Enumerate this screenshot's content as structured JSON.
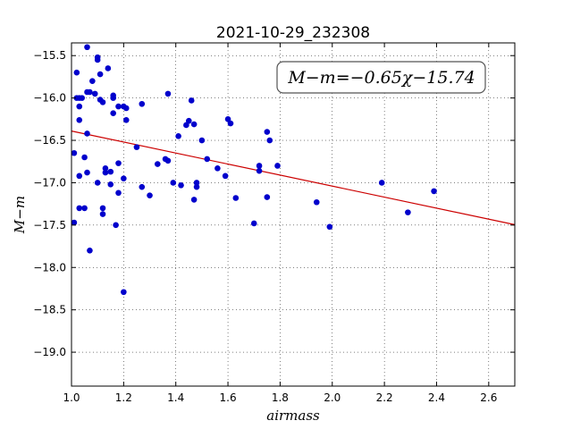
{
  "chart_data": {
    "type": "scatter",
    "title": "2021-10-29_232308",
    "xlabel": "airmass",
    "ylabel": "M−m",
    "annotation": "M−m=−0.65χ−15.74",
    "xlim": [
      1.0,
      2.7
    ],
    "ylim": [
      -19.4,
      -15.35
    ],
    "y_inverted": true,
    "grid": true,
    "marker_color": "#0000cc",
    "fit_color": "#cc0000",
    "xticks": [
      "1.0",
      "1.2",
      "1.4",
      "1.6",
      "1.8",
      "2.0",
      "2.2",
      "2.4",
      "2.6"
    ],
    "xtick_values": [
      1.0,
      1.2,
      1.4,
      1.6,
      1.8,
      2.0,
      2.2,
      2.4,
      2.6
    ],
    "yticks": [
      "−15.5",
      "−16.0",
      "−16.5",
      "−17.0",
      "−17.5",
      "−18.0",
      "−18.5",
      "−19.0"
    ],
    "ytick_values": [
      -15.5,
      -16.0,
      -16.5,
      -17.0,
      -17.5,
      -18.0,
      -18.5,
      -19.0
    ],
    "fit": {
      "slope": -0.65,
      "intercept": -15.74
    },
    "points": [
      [
        1.06,
        -15.4
      ],
      [
        1.1,
        -15.52
      ],
      [
        1.1,
        -15.55
      ],
      [
        1.14,
        -15.65
      ],
      [
        1.02,
        -15.7
      ],
      [
        1.11,
        -15.72
      ],
      [
        1.08,
        -15.8
      ],
      [
        1.04,
        -16.0
      ],
      [
        1.02,
        -16.0
      ],
      [
        1.03,
        -16.0
      ],
      [
        1.06,
        -15.93
      ],
      [
        1.07,
        -15.93
      ],
      [
        1.09,
        -15.95
      ],
      [
        1.16,
        -15.97
      ],
      [
        1.16,
        -16.0
      ],
      [
        1.11,
        -16.02
      ],
      [
        1.12,
        -16.05
      ],
      [
        1.03,
        -16.1
      ],
      [
        1.18,
        -16.1
      ],
      [
        1.2,
        -16.1
      ],
      [
        1.21,
        -16.12
      ],
      [
        1.16,
        -16.18
      ],
      [
        1.21,
        -16.26
      ],
      [
        1.03,
        -16.26
      ],
      [
        1.27,
        -16.07
      ],
      [
        1.37,
        -15.95
      ],
      [
        1.06,
        -16.42
      ],
      [
        1.41,
        -16.45
      ],
      [
        1.44,
        -16.32
      ],
      [
        1.45,
        -16.27
      ],
      [
        1.46,
        -16.03
      ],
      [
        1.47,
        -16.31
      ],
      [
        1.5,
        -16.5
      ],
      [
        1.6,
        -16.25
      ],
      [
        1.61,
        -16.3
      ],
      [
        1.75,
        -16.4
      ],
      [
        1.76,
        -16.5
      ],
      [
        1.01,
        -16.65
      ],
      [
        1.05,
        -16.7
      ],
      [
        1.25,
        -16.58
      ],
      [
        1.18,
        -16.77
      ],
      [
        1.13,
        -16.83
      ],
      [
        1.13,
        -16.88
      ],
      [
        1.15,
        -16.87
      ],
      [
        1.06,
        -16.88
      ],
      [
        1.03,
        -16.92
      ],
      [
        1.33,
        -16.78
      ],
      [
        1.36,
        -16.72
      ],
      [
        1.37,
        -16.74
      ],
      [
        1.2,
        -16.95
      ],
      [
        1.1,
        -17.0
      ],
      [
        1.15,
        -17.02
      ],
      [
        1.27,
        -17.05
      ],
      [
        1.39,
        -17.0
      ],
      [
        1.42,
        -17.03
      ],
      [
        1.48,
        -17.0
      ],
      [
        1.48,
        -17.05
      ],
      [
        1.52,
        -16.72
      ],
      [
        1.56,
        -16.83
      ],
      [
        1.59,
        -16.92
      ],
      [
        1.72,
        -16.8
      ],
      [
        1.72,
        -16.86
      ],
      [
        1.79,
        -16.8
      ],
      [
        1.18,
        -17.12
      ],
      [
        1.3,
        -17.15
      ],
      [
        1.47,
        -17.2
      ],
      [
        1.63,
        -17.18
      ],
      [
        1.75,
        -17.17
      ],
      [
        1.03,
        -17.3
      ],
      [
        1.05,
        -17.3
      ],
      [
        1.12,
        -17.3
      ],
      [
        1.12,
        -17.37
      ],
      [
        1.01,
        -17.47
      ],
      [
        1.17,
        -17.5
      ],
      [
        1.7,
        -17.48
      ],
      [
        1.94,
        -17.23
      ],
      [
        1.99,
        -17.52
      ],
      [
        2.19,
        -17.0
      ],
      [
        2.29,
        -17.35
      ],
      [
        2.39,
        -17.1
      ],
      [
        1.07,
        -17.8
      ],
      [
        1.2,
        -18.29
      ]
    ]
  }
}
